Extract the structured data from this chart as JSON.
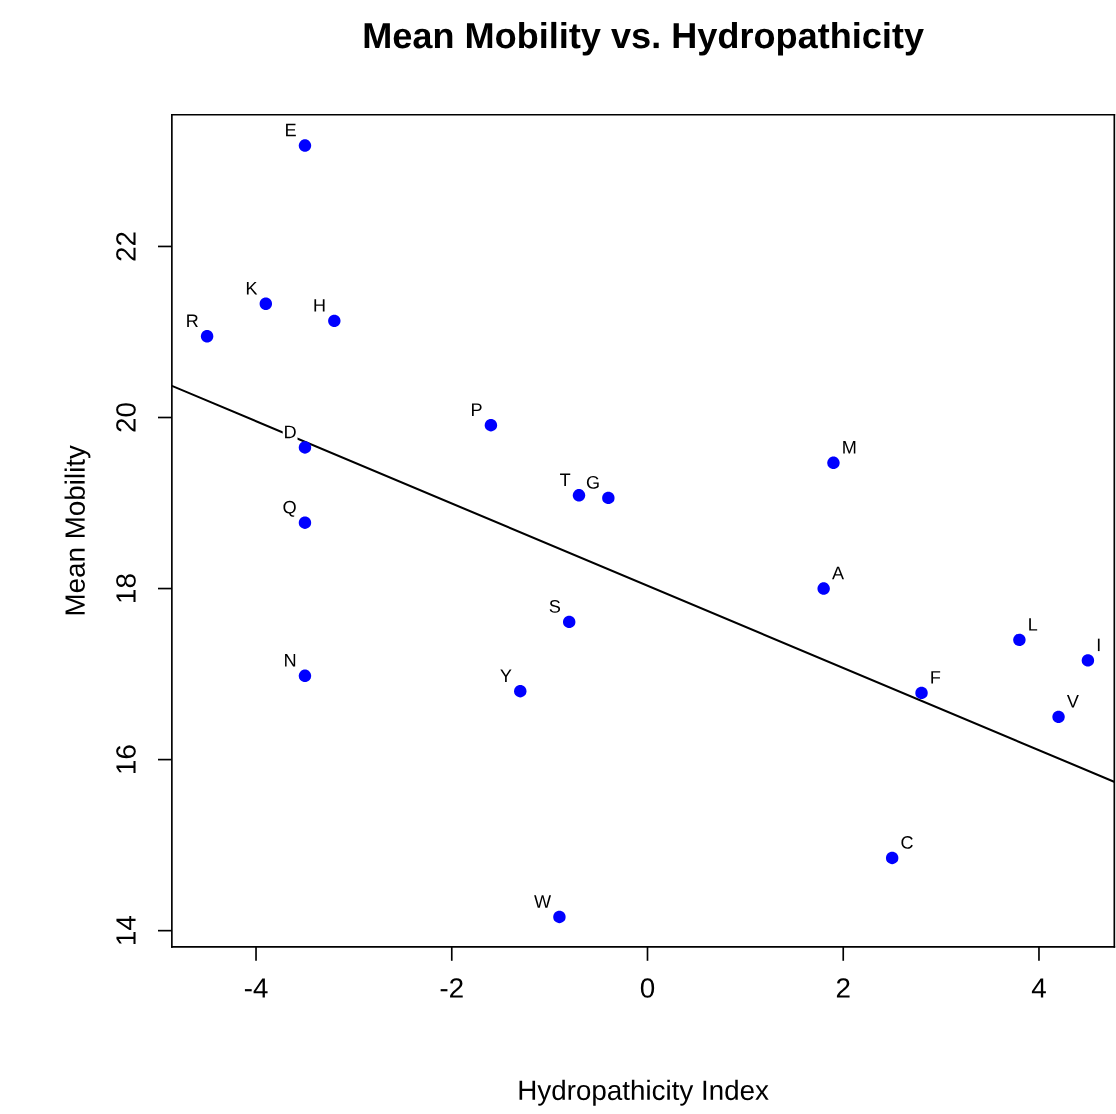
{
  "chart_data": {
    "type": "scatter",
    "title": "Mean Mobility vs. Hydropathicity",
    "xlabel": "Hydropathicity Index",
    "ylabel": "Mean Mobility",
    "xlim": [
      -4.86,
      4.77
    ],
    "ylim": [
      13.81,
      23.54
    ],
    "xticks": [
      -4,
      -2,
      0,
      2,
      4
    ],
    "yticks": [
      14,
      16,
      18,
      20,
      22
    ],
    "grid": false,
    "legend": false,
    "series": [
      {
        "marker": "circle",
        "color": "#0000ff",
        "x": [
          -3.5,
          -3.9,
          -3.2,
          -4.5,
          -1.6,
          -3.5,
          1.9,
          -0.7,
          -0.4,
          -3.5,
          1.8,
          -0.8,
          3.8,
          4.5,
          -3.5,
          -1.3,
          2.8,
          4.2,
          2.5,
          -0.9
        ],
        "values": [
          23.18,
          21.33,
          21.13,
          20.95,
          19.91,
          19.65,
          19.47,
          19.09,
          19.06,
          18.77,
          18.0,
          17.61,
          17.4,
          17.16,
          16.98,
          16.8,
          16.78,
          16.5,
          14.85,
          14.16
        ]
      },
      {
        "type": "line",
        "marker": "none",
        "color": "#000000",
        "x": [
          -4.86,
          4.77
        ],
        "values": [
          20.37,
          15.74
        ]
      }
    ],
    "annotations": [
      {
        "text": "E",
        "x": -3.5,
        "y": 23.18
      },
      {
        "text": "K",
        "x": -3.9,
        "y": 21.33
      },
      {
        "text": "H",
        "x": -3.2,
        "y": 21.13
      },
      {
        "text": "R",
        "x": -4.5,
        "y": 20.95
      },
      {
        "text": "P",
        "x": -1.6,
        "y": 19.91
      },
      {
        "text": "D",
        "x": -3.5,
        "y": 19.65
      },
      {
        "text": "M",
        "x": 1.9,
        "y": 19.47
      },
      {
        "text": "T",
        "x": -0.7,
        "y": 19.09
      },
      {
        "text": "G",
        "x": -0.4,
        "y": 19.06
      },
      {
        "text": "Q",
        "x": -3.5,
        "y": 18.77
      },
      {
        "text": "A",
        "x": 1.8,
        "y": 18.0
      },
      {
        "text": "S",
        "x": -0.8,
        "y": 17.61
      },
      {
        "text": "L",
        "x": 3.8,
        "y": 17.4
      },
      {
        "text": "I",
        "x": 4.5,
        "y": 17.16
      },
      {
        "text": "N",
        "x": -3.5,
        "y": 16.98
      },
      {
        "text": "Y",
        "x": -1.3,
        "y": 16.8
      },
      {
        "text": "F",
        "x": 2.8,
        "y": 16.78
      },
      {
        "text": "V",
        "x": 4.2,
        "y": 16.5
      },
      {
        "text": "C",
        "x": 2.5,
        "y": 14.85
      },
      {
        "text": "W",
        "x": -0.9,
        "y": 14.16
      }
    ]
  }
}
